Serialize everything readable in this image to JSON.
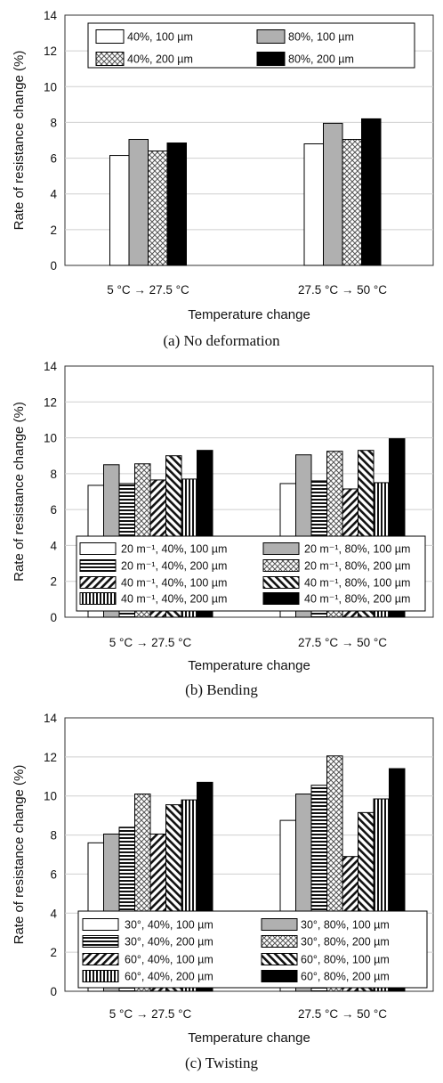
{
  "chart_data": [
    {
      "type": "bar",
      "caption": "(a) No deformation",
      "xlabel": "Temperature change",
      "ylabel": "Rate of resistance change (%)",
      "ylim": [
        0,
        14
      ],
      "yticks": [
        "0",
        "2",
        "4",
        "6",
        "8",
        "10",
        "12",
        "14"
      ],
      "categories": [
        "5 °C → 27.5 °C",
        "27.5 °C → 50 °C"
      ],
      "legend_position": "top",
      "series": [
        {
          "name": "40%, 100 µm",
          "pattern": "white",
          "values": [
            6.15,
            6.8
          ]
        },
        {
          "name": "80%, 100 µm",
          "pattern": "gray",
          "values": [
            7.05,
            7.95
          ]
        },
        {
          "name": "40%, 200 µm",
          "pattern": "check",
          "values": [
            6.4,
            7.05
          ]
        },
        {
          "name": "80%, 200 µm",
          "pattern": "black",
          "values": [
            6.85,
            8.2
          ]
        }
      ]
    },
    {
      "type": "bar",
      "caption": "(b) Bending",
      "xlabel": "Temperature change",
      "ylabel": "Rate of resistance change (%)",
      "ylim": [
        0,
        14
      ],
      "yticks": [
        "0",
        "2",
        "4",
        "6",
        "8",
        "10",
        "12",
        "14"
      ],
      "categories": [
        "5 °C → 27.5 °C",
        "27.5 °C → 50 °C"
      ],
      "legend_position": "bottom",
      "series": [
        {
          "name": "20 m⁻¹, 40%, 100 µm",
          "pattern": "white",
          "values": [
            7.35,
            7.45
          ]
        },
        {
          "name": "20 m⁻¹, 80%, 100 µm",
          "pattern": "gray",
          "values": [
            8.5,
            9.05
          ]
        },
        {
          "name": "20 m⁻¹, 40%, 200 µm",
          "pattern": "hlines",
          "values": [
            7.45,
            7.6
          ]
        },
        {
          "name": "20 m⁻¹, 80%, 200 µm",
          "pattern": "check",
          "values": [
            8.55,
            9.25
          ]
        },
        {
          "name": "40 m⁻¹, 40%, 100 µm",
          "pattern": "ddown",
          "values": [
            7.65,
            7.15
          ]
        },
        {
          "name": "40 m⁻¹, 80%, 100 µm",
          "pattern": "dup",
          "values": [
            9.0,
            9.3
          ]
        },
        {
          "name": "40 m⁻¹, 40%, 200 µm",
          "pattern": "vlines",
          "values": [
            7.7,
            7.5
          ]
        },
        {
          "name": "40 m⁻¹, 80%, 200 µm",
          "pattern": "black",
          "values": [
            9.3,
            9.95
          ]
        }
      ]
    },
    {
      "type": "bar",
      "caption": "(c) Twisting",
      "xlabel": "Temperature change",
      "ylabel": "Rate of resistance change (%)",
      "ylim": [
        0,
        14
      ],
      "yticks": [
        "0",
        "2",
        "4",
        "6",
        "8",
        "10",
        "12",
        "14"
      ],
      "categories": [
        "5 °C → 27.5 °C",
        "27.5 °C → 50 °C"
      ],
      "legend_position": "bottom",
      "series": [
        {
          "name": "30°, 40%, 100 µm",
          "pattern": "white",
          "values": [
            7.6,
            8.75
          ]
        },
        {
          "name": "30°, 80%, 100 µm",
          "pattern": "gray",
          "values": [
            8.05,
            10.1
          ]
        },
        {
          "name": "30°, 40%, 200 µm",
          "pattern": "hlines",
          "values": [
            8.4,
            10.55
          ]
        },
        {
          "name": "30°, 80%, 200 µm",
          "pattern": "check",
          "values": [
            10.1,
            12.05
          ]
        },
        {
          "name": "60°, 40%, 100 µm",
          "pattern": "ddown",
          "values": [
            8.05,
            6.9
          ]
        },
        {
          "name": "60°, 80%, 100 µm",
          "pattern": "dup",
          "values": [
            9.55,
            9.15
          ]
        },
        {
          "name": "60°, 40%, 200 µm",
          "pattern": "vlines",
          "values": [
            9.8,
            9.85
          ]
        },
        {
          "name": "60°, 80%, 200 µm",
          "pattern": "black",
          "values": [
            10.7,
            11.4
          ]
        }
      ]
    }
  ]
}
